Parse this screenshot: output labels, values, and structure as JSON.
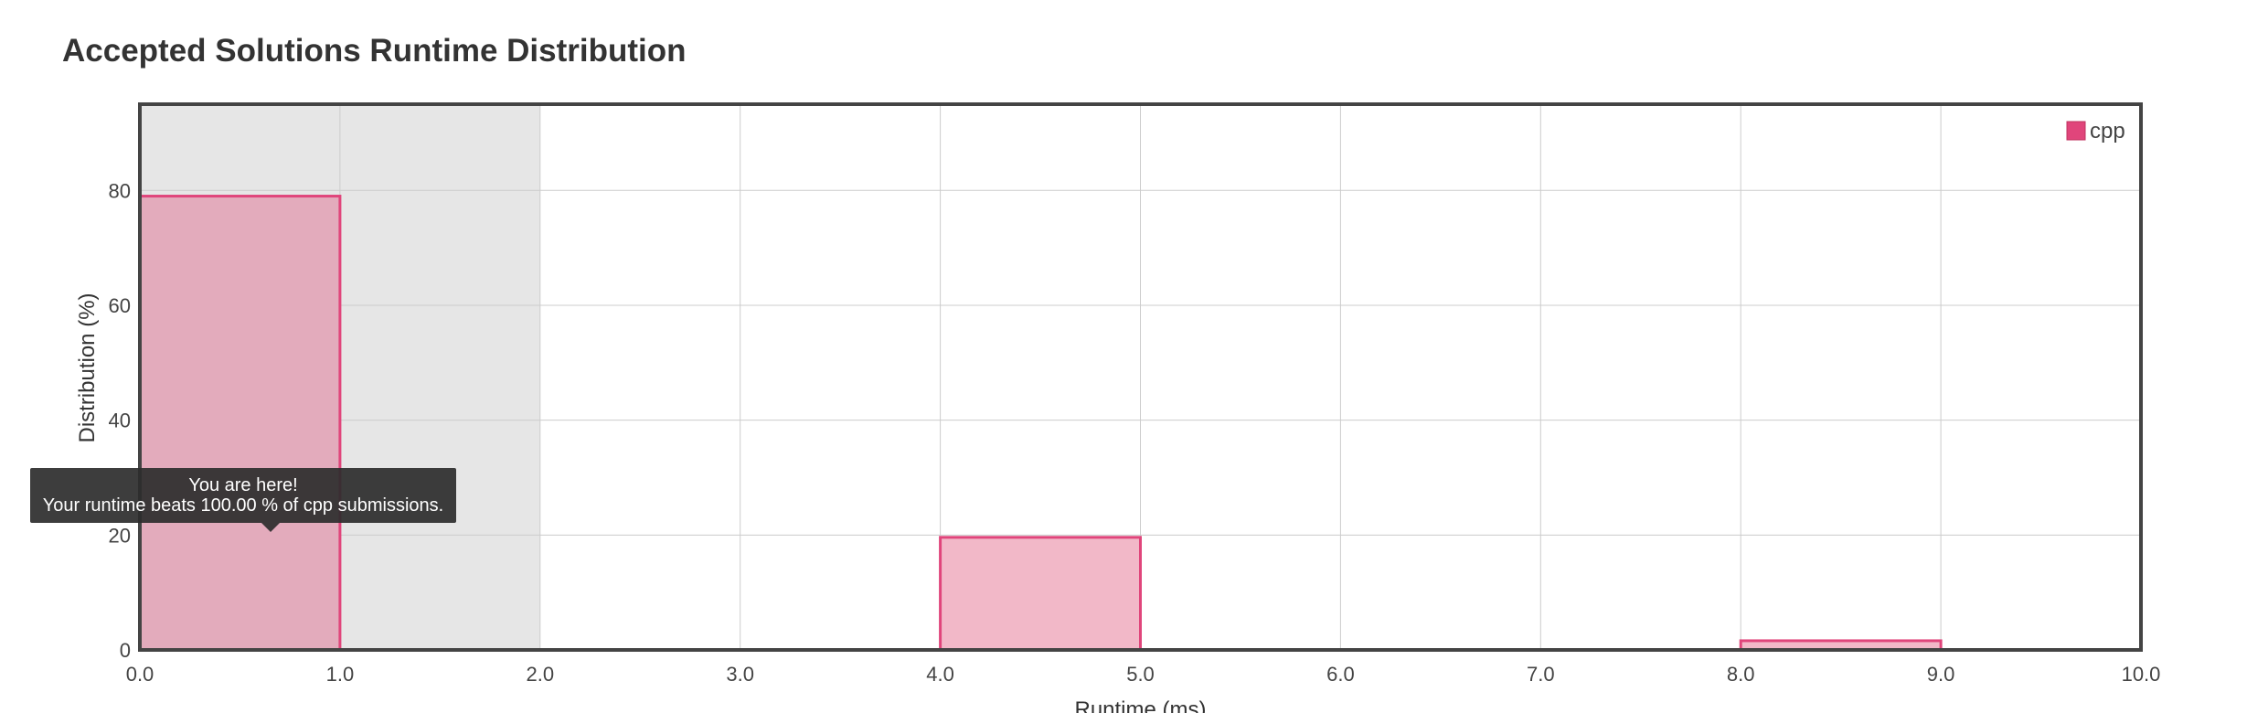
{
  "title": "Accepted Solutions Runtime Distribution",
  "tooltip": {
    "line1": "You are here!",
    "line2": "Your runtime beats 100.00 % of cpp submissions."
  },
  "colors": {
    "bar_fill": "#f2b8c8",
    "bar_stroke": "#e0457b",
    "highlight_fill": "#e3abbc",
    "shade": "#e6e6e6",
    "grid": "#cccccc",
    "frame": "#444444"
  },
  "chart_data": {
    "type": "bar",
    "xlabel": "Runtime (ms)",
    "ylabel": "Distribution (%)",
    "xlim": [
      0,
      10
    ],
    "ylim": [
      0,
      95
    ],
    "x_ticks": [
      "0.0",
      "1.0",
      "2.0",
      "3.0",
      "4.0",
      "5.0",
      "6.0",
      "7.0",
      "8.0",
      "9.0",
      "10.0"
    ],
    "y_ticks": [
      "0",
      "20",
      "40",
      "60",
      "80"
    ],
    "shaded_range": [
      0,
      2
    ],
    "legend": {
      "position": "top-right",
      "entries": [
        "cpp"
      ]
    },
    "series": [
      {
        "name": "cpp",
        "bins": [
          {
            "start": 0,
            "end": 1,
            "value": 79,
            "highlight": true
          },
          {
            "start": 4,
            "end": 5,
            "value": 19.6,
            "highlight": false
          },
          {
            "start": 8,
            "end": 9,
            "value": 1.6,
            "highlight": false
          }
        ]
      }
    ],
    "grid": true
  }
}
